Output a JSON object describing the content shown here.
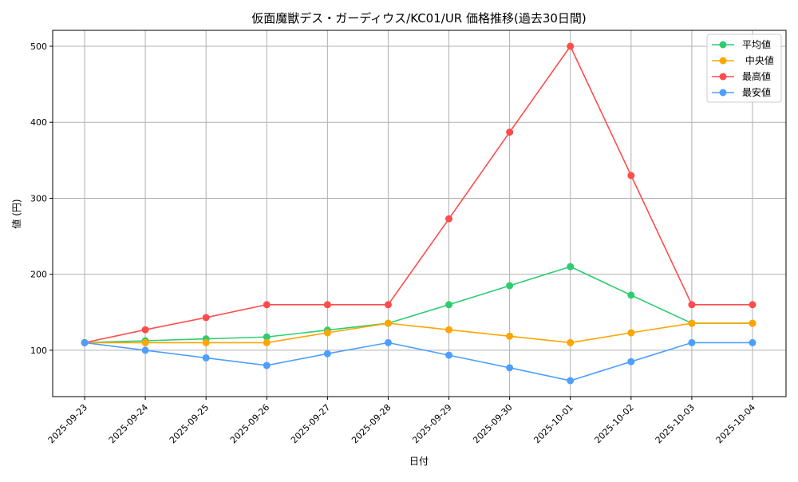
{
  "chart_data": {
    "type": "line",
    "title": "仮面魔獣デス・ガーディウス/KC01/UR 価格推移(過去30日間)",
    "xlabel": "日付",
    "ylabel": "値 (円)",
    "x": [
      "2025-09-23",
      "2025-09-24",
      "2025-09-25",
      "2025-09-26",
      "2025-09-27",
      "2025-09-28",
      "2025-09-29",
      "2025-09-30",
      "2025-10-01",
      "2025-10-02",
      "2025-10-03",
      "2025-10-04"
    ],
    "ylim": [
      39,
      521
    ],
    "yticks": [
      100,
      200,
      300,
      400,
      500
    ],
    "grid": true,
    "legend_position": "top-right",
    "series": [
      {
        "name": "平均値",
        "color": "#2ecc71",
        "values": [
          110,
          112.5,
          115,
          117.5,
          126.5,
          135.5,
          160,
          185,
          210,
          172.5,
          135.5,
          135.5
        ]
      },
      {
        "name": " 中央値",
        "color": "#ffa500",
        "values": [
          110,
          110,
          110,
          110,
          123,
          135.5,
          127,
          118.5,
          110,
          123,
          135.5,
          135.5
        ]
      },
      {
        "name": "最高値",
        "color": "#ff4d4d",
        "values": [
          110,
          127,
          143,
          160,
          160,
          160,
          273,
          387,
          500,
          330,
          160,
          160
        ]
      },
      {
        "name": "最安値",
        "color": "#4d9fff",
        "values": [
          110,
          100,
          90,
          80,
          95.5,
          110,
          93.5,
          77,
          60,
          85,
          110,
          110
        ]
      }
    ]
  }
}
